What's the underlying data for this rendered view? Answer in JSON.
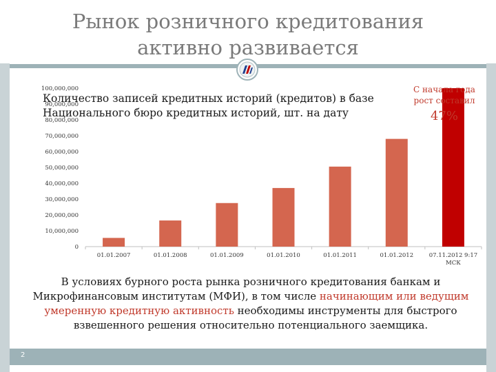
{
  "slide": {
    "title": "Рынок розничного кредитования активно развивается",
    "page_number": "2",
    "colors": {
      "bar": "#d4664f",
      "bar_highlight": "#c00000",
      "band": "#9db2b7",
      "title": "#7a7a7a",
      "accent_text": "#c0392b"
    },
    "icons": {
      "logo": "nbki-logo-icon"
    }
  },
  "chart_data": {
    "type": "bar",
    "title": "Количество записей кредитных историй (кредитов) в базе Национального бюро кредитных историй, шт. на дату",
    "categories": [
      "01.01.2007",
      "01.01.2008",
      "01.01.2009",
      "01.01.2010",
      "01.01.2011",
      "01.01.2012",
      "07.11.2012 9:17 МСК"
    ],
    "values": [
      5500000,
      16500000,
      27500000,
      37000000,
      50500000,
      68000000,
      100000000
    ],
    "highlight_index": 6,
    "ylim": [
      0,
      100000000
    ],
    "yticks": [
      "0",
      "10,000,000",
      "20,000,000",
      "30,000,000",
      "40,000,000",
      "50,000,000",
      "60,000,000",
      "70,000,000",
      "80,000,000",
      "90,000,000",
      "100,000,000"
    ],
    "annotation": {
      "line1": "С начала года",
      "line2": "рост составил",
      "value": "47%"
    },
    "xlabel": "",
    "ylabel": "",
    "grid": false
  },
  "caption": {
    "part1": "В условиях бурного роста рынка розничного кредитования банкам и Микрофинансовым институтам (МФИ), в том числе ",
    "highlight": "начинающим или ведущим умеренную кредитную активность",
    "part2": " необходимы инструменты для быстрого взвешенного решения относительно потенциального заемщика."
  }
}
